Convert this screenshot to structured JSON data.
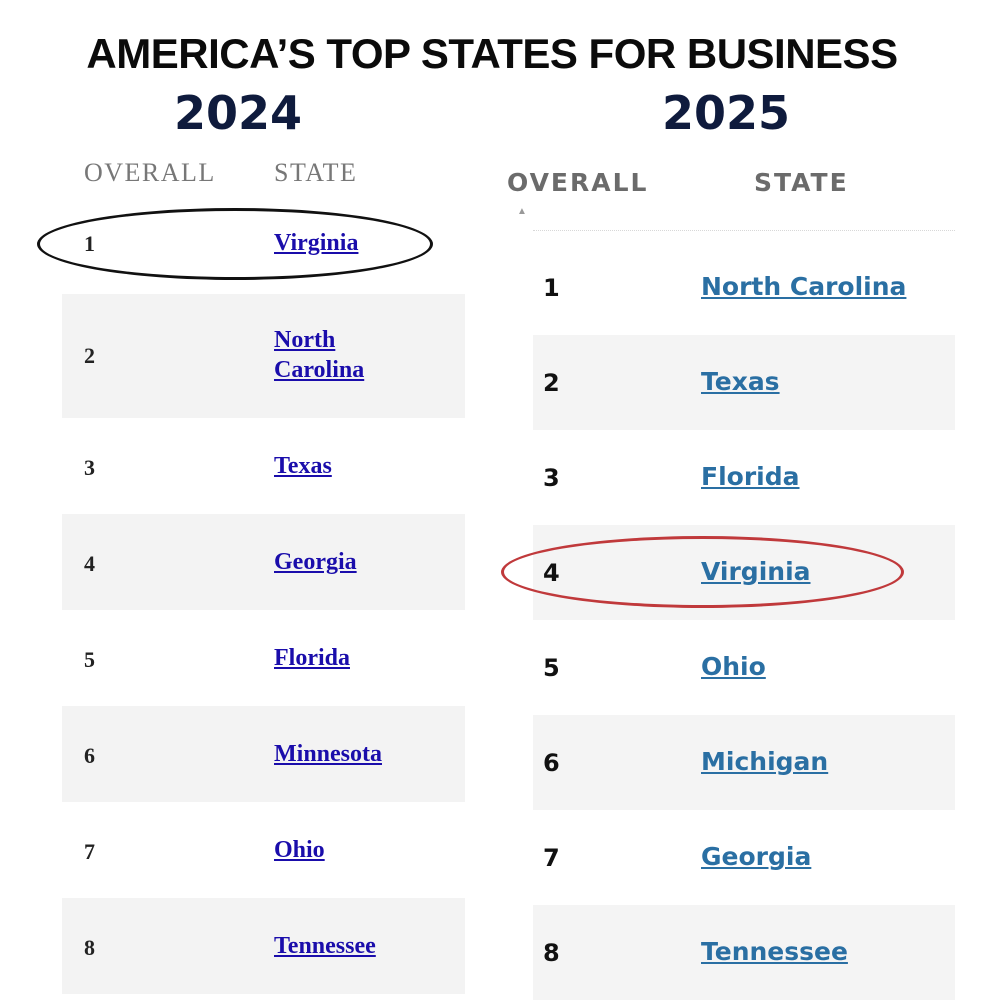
{
  "title": "AMERICA’S TOP STATES FOR BUSINESS",
  "left": {
    "year": "2024",
    "col_overall": "OVERALL",
    "col_state": "STATE",
    "rows": [
      {
        "rank": "1",
        "state": "Virginia"
      },
      {
        "rank": "2",
        "state": "North Carolina"
      },
      {
        "rank": "3",
        "state": "Texas"
      },
      {
        "rank": "4",
        "state": "Georgia"
      },
      {
        "rank": "5",
        "state": "Florida"
      },
      {
        "rank": "6",
        "state": "Minnesota"
      },
      {
        "rank": "7",
        "state": "Ohio"
      },
      {
        "rank": "8",
        "state": "Tennessee"
      }
    ],
    "highlight_color": "#111111"
  },
  "right": {
    "year": "2025",
    "col_overall": "OVERALL",
    "col_state": "STATE",
    "rows": [
      {
        "rank": "1",
        "state": "North Carolina"
      },
      {
        "rank": "2",
        "state": "Texas"
      },
      {
        "rank": "3",
        "state": "Florida"
      },
      {
        "rank": "4",
        "state": "Virginia"
      },
      {
        "rank": "5",
        "state": "Ohio"
      },
      {
        "rank": "6",
        "state": "Michigan"
      },
      {
        "rank": "7",
        "state": "Georgia"
      },
      {
        "rank": "8",
        "state": "Tennessee"
      }
    ],
    "highlight_color": "#c0393b"
  },
  "colors": {
    "title": "#0b0b0b",
    "year": "#0f1b3d",
    "link_2024": "#1a0dab",
    "link_2025": "#2a6fa3"
  }
}
